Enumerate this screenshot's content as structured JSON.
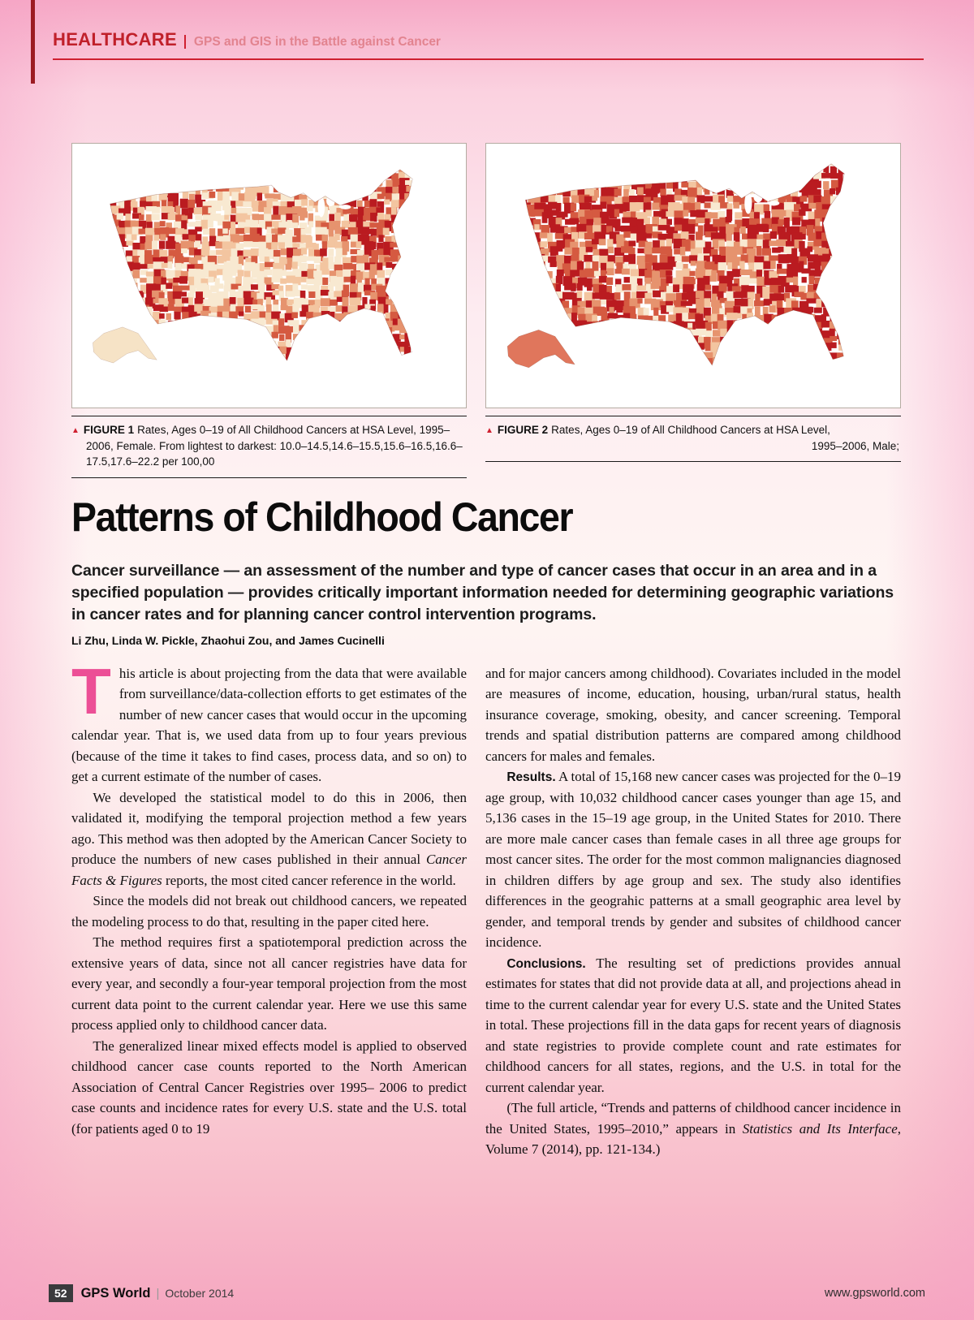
{
  "header": {
    "section": "HEALTHCARE",
    "tagline": "GPS and GIS in the Battle against Cancer"
  },
  "figures": [
    {
      "label": "FIGURE 1",
      "caption": "Rates, Ages 0–19 of All Childhood Cancers at HSA Level, 1995–2006, Female. From lightest to darkest: 10.0–14.5,14.6–15.5,15.6–16.5,16.6–17.5,17.6–22.2 per 100,00"
    },
    {
      "label": "FIGURE 2",
      "caption": "Rates, Ages 0–19 of All Childhood Cancers at HSA Level,",
      "caption_tail": "1995–2006, Male;"
    }
  ],
  "maps": {
    "palette_light_to_dark": [
      "#f8e9d1",
      "#f3c5a0",
      "#e6936e",
      "#d55a41",
      "#ba1b20"
    ],
    "figure1_alaska": "#f6e3c6",
    "figure2_alaska": "#e0765c"
  },
  "article": {
    "title": "Patterns of Childhood Cancer",
    "deck": "Cancer surveillance — an assessment of the number and type of cancer cases that occur in an area and in a specified population — provides critically important information needed for determining geographic variations in cancer rates and for planning cancer control intervention programs.",
    "byline": "Li Zhu, Linda W. Pickle, Zhaohui Zou, and James Cucinelli",
    "dropcap": "T",
    "col1": [
      [
        {
          "t": "his article is about projecting from the data that were available from surveillance/data-collection efforts to get estimates of the number of new cancer cases that would occur in the upcoming calendar year. That is, we used data from up to four years previous (because of the time it takes to find cases, process data, and so on) to get a current estimate of the number of cases."
        }
      ],
      [
        {
          "t": "We developed the statistical model to do this in 2006, then validated it, modifying the temporal projection method a few years ago. This method was then adopted by the American Cancer Society to produce the numbers of new cases published in their annual "
        },
        {
          "t": "Cancer Facts & Figures",
          "s": "i"
        },
        {
          "t": " reports, the most cited cancer reference in the world."
        }
      ],
      [
        {
          "t": "Since the models did not break out childhood cancers, we repeated the modeling process to do that, resulting in the paper cited here."
        }
      ],
      [
        {
          "t": "The method requires first a spatiotemporal prediction across the extensive years of data, since not all cancer registries have data for every year, and secondly a four-year temporal projection from the most current data point to the current calendar year. Here we use this same process applied only to childhood cancer data."
        }
      ],
      [
        {
          "t": "The generalized linear mixed effects model is applied to observed childhood cancer case counts reported to the North American Association of Central Cancer Registries over 1995– 2006 to predict case counts and incidence rates for every U.S. state and the U.S. total (for patients aged 0 to 19"
        }
      ]
    ],
    "col2": [
      [
        {
          "t": "and for major cancers among childhood). Covariates included in the model are measures of income, education, housing, urban/rural status, health insurance coverage, smoking, obesity, and cancer screening. Temporal trends and spatial distribution patterns are compared among childhood cancers for males and females."
        }
      ],
      [
        {
          "t": "Results.",
          "s": "b"
        },
        {
          "t": " A total of 15,168 new cancer cases was projected for the 0–19 age group, with 10,032 childhood cancer cases younger than age 15, and 5,136 cases in the 15–19 age group, in the United States for 2010. There are more male cancer cases than female cases in all three age groups for most cancer sites. The order for the most common malignancies diagnosed in children differs by age group and sex. The study also identifies differences in the geograhic patterns at a small geographic area level by gender, and temporal trends by gender and subsites of childhood cancer incidence."
        }
      ],
      [
        {
          "t": "Conclusions.",
          "s": "b"
        },
        {
          "t": " The resulting set of predictions provides annual estimates for states that did not provide data at all, and projections ahead in time to the current calendar year for every U.S. state and the United States in total. These projections fill in the data gaps for recent years of diagnosis and state registries to provide complete count and rate estimates for childhood cancers for all states, regions, and the U.S. in total for the current calendar year."
        }
      ],
      [
        {
          "t": "(The full article, “Trends and patterns of childhood cancer incidence in the United States, 1995–2010,” appears in "
        },
        {
          "t": "Statistics and Its Interface",
          "s": "i"
        },
        {
          "t": ", Volume 7 (2014), pp. 121-134.)"
        }
      ]
    ]
  },
  "footer": {
    "page_number": "52",
    "publication": "GPS World",
    "issue": "October 2014",
    "website": "www.gpsworld.com"
  },
  "colors": {
    "accent_red": "#c0202a",
    "rule_red": "#cf2030",
    "tagline_pink": "#e2838f",
    "dropcap_pink": "#ec4f96",
    "page_pink": "#f6a9c6"
  }
}
